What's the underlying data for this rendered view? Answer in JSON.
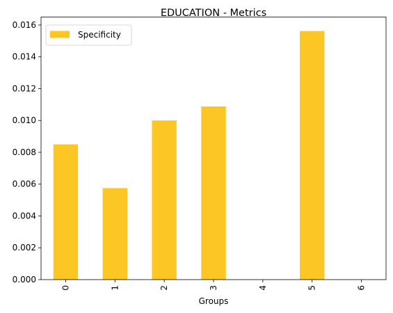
{
  "chart_data": {
    "type": "bar",
    "title": "EDUCATION - Metrics",
    "xlabel": "Groups",
    "ylabel": "",
    "categories": [
      "0",
      "1",
      "2",
      "3",
      "4",
      "5",
      "6"
    ],
    "series": [
      {
        "name": "Specificity",
        "values": [
          0.0085,
          0.00575,
          0.01,
          0.01088,
          0.0,
          0.01562,
          0.0
        ],
        "color": "#fcc624"
      }
    ],
    "ylim": [
      0,
      0.0165
    ],
    "yticks": [
      "0.000",
      "0.002",
      "0.004",
      "0.006",
      "0.008",
      "0.010",
      "0.012",
      "0.014",
      "0.016"
    ],
    "grid": false,
    "legend_position": "top-left"
  }
}
